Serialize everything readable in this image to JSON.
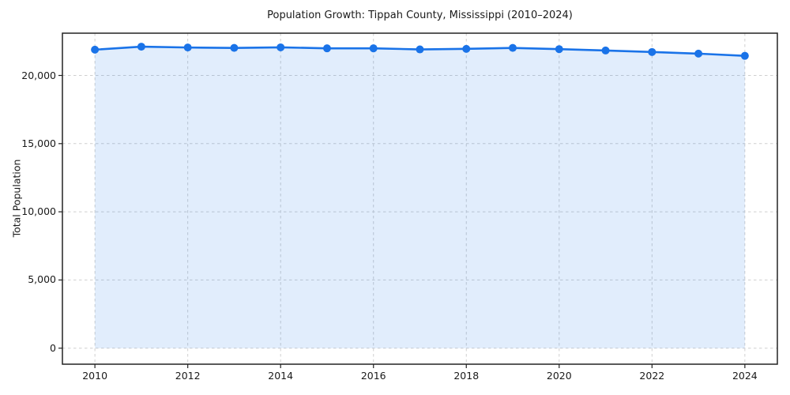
{
  "figure": {
    "title": "Population Growth: Tippah County, Mississippi (2010–2024)",
    "background_color": "#ffffff"
  },
  "chart_data": {
    "type": "line",
    "title": "Population Growth: Tippah County, Mississippi (2010–2024)",
    "xlabel": "",
    "ylabel": "Total Population",
    "x": [
      2010,
      2011,
      2012,
      2013,
      2014,
      2015,
      2016,
      2017,
      2018,
      2019,
      2020,
      2021,
      2022,
      2023,
      2024
    ],
    "series": [
      {
        "name": "Total Population",
        "values": [
          21890,
          22110,
          22050,
          22020,
          22060,
          21990,
          21990,
          21910,
          21950,
          22020,
          21930,
          21830,
          21720,
          21600,
          21440
        ]
      }
    ],
    "xticks": [
      2010,
      2012,
      2014,
      2016,
      2018,
      2020,
      2022,
      2024
    ],
    "yticks": [
      0,
      5000,
      10000,
      15000,
      20000
    ],
    "xlim": [
      2009.3,
      2024.7
    ],
    "ylim": [
      -1175,
      23100
    ],
    "grid": true,
    "grid_style": "dashed",
    "legend_position": "none",
    "line_color": "#1a73e8",
    "marker": "circle",
    "marker_color": "#1a73e8",
    "fill_below_line": true,
    "fill_opacity": 0.13,
    "fill_baseline": 0,
    "grid_color": "#cfcfcf",
    "spine_color": "#222222",
    "tick_label_color": "#1a1a1a"
  }
}
